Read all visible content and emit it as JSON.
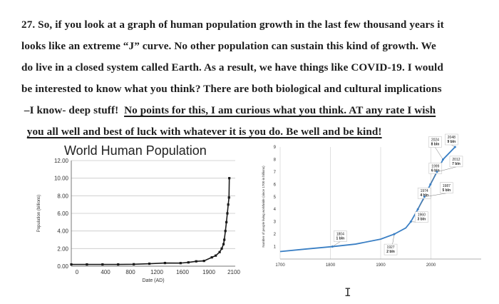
{
  "question": {
    "lines": [
      "27. So, if you look at a graph of human population growth in the last few thousand years it",
      "looks like an extreme “J” curve.  No other population can sustain this kind of growth.  We",
      "do live in a closed system called Earth.  As a result, we have things like COVID-19.  I would",
      "be interested to know what you think?  There are both biological and cultural implications"
    ],
    "line5_plain": "–I know- deep stuff!",
    "line5_underlined": "No points for this, I am curious what you think.  AT any rate I wish",
    "line6_underlined": "you all well and best of luck with whatever it is you do.  Be well and be kind!"
  },
  "chart_data": [
    {
      "type": "line",
      "title": "World Human Population",
      "xlabel": "Date (AD)",
      "ylabel": "Population (billions)",
      "xlim": [
        0,
        2100
      ],
      "ylim": [
        0,
        12
      ],
      "x_ticks": [
        "0",
        "400",
        "800",
        "1200",
        "1600",
        "1900",
        "2100"
      ],
      "y_ticks": [
        "0.00",
        "2.00",
        "4.00",
        "6.00",
        "8.00",
        "10.00",
        "12.00"
      ],
      "grid": true,
      "series": [
        {
          "x": [
            0,
            200,
            400,
            600,
            800,
            1000,
            1200,
            1400,
            1500,
            1600,
            1700,
            1800,
            1850,
            1900,
            1927,
            1950,
            1960,
            1974,
            1987,
            1999,
            2010,
            2020,
            2024
          ],
          "y": [
            0.2,
            0.2,
            0.2,
            0.2,
            0.22,
            0.28,
            0.36,
            0.35,
            0.43,
            0.55,
            0.6,
            1.0,
            1.2,
            1.6,
            2.0,
            2.5,
            3.0,
            4.0,
            5.0,
            6.0,
            7.0,
            7.8,
            10.0
          ]
        }
      ],
      "color": "#1a1a1a"
    },
    {
      "type": "line",
      "ylabel": "Number of people living worldwide (since 1700 in billions)",
      "xlim": [
        1700,
        2100
      ],
      "ylim": [
        0,
        9
      ],
      "x_ticks": [
        "1700",
        "1800",
        "1900",
        "2000"
      ],
      "y_ticks": [
        "1",
        "2",
        "3",
        "4",
        "5",
        "6",
        "7",
        "8",
        "9"
      ],
      "series": [
        {
          "x": [
            1700,
            1750,
            1804,
            1850,
            1900,
            1927,
            1950,
            1960,
            1974,
            1987,
            1999,
            2012,
            2024,
            2048
          ],
          "y": [
            0.6,
            0.8,
            1.0,
            1.2,
            1.6,
            2.0,
            2.5,
            3.0,
            4.0,
            5.0,
            6.0,
            7.0,
            8.0,
            9.0
          ]
        }
      ],
      "color": "#3a7fc4",
      "annotations": [
        {
          "x": 1804,
          "y": 1,
          "year": "1804",
          "value": "1 bln"
        },
        {
          "x": 1927,
          "y": 2,
          "year": "1927",
          "value": "2 bln"
        },
        {
          "x": 1960,
          "y": 3,
          "year": "1960",
          "value": "3 bln"
        },
        {
          "x": 1974,
          "y": 4,
          "year": "1974",
          "value": "4 bln"
        },
        {
          "x": 1987,
          "y": 5,
          "year": "1987",
          "value": "5 bln"
        },
        {
          "x": 1999,
          "y": 6,
          "year": "1999",
          "value": "6 bln"
        },
        {
          "x": 2012,
          "y": 7,
          "year": "2012",
          "value": "7 bln"
        },
        {
          "x": 2024,
          "y": 8,
          "year": "2024",
          "value": "8 bln"
        },
        {
          "x": 2048,
          "y": 9,
          "year": "2048",
          "value": "9 bln"
        }
      ]
    }
  ],
  "cursor": "I"
}
